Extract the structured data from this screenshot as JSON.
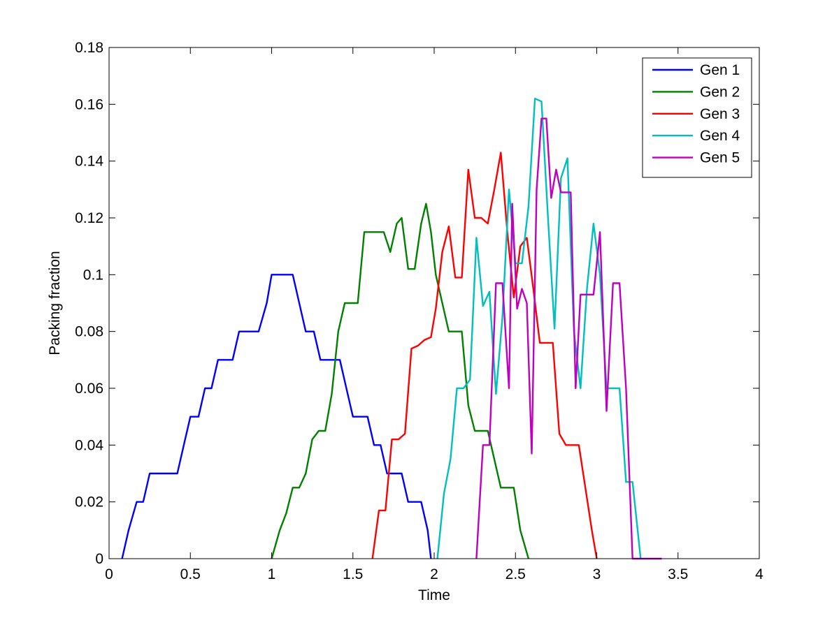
{
  "chart_data": {
    "type": "line",
    "title": "",
    "xlabel": "Time",
    "ylabel": "Packing fraction",
    "xlim": [
      0,
      4
    ],
    "ylim": [
      0,
      0.18
    ],
    "xticks": [
      0,
      0.5,
      1,
      1.5,
      2,
      2.5,
      3,
      3.5,
      4
    ],
    "xtick_labels": [
      "0",
      "0.5",
      "1",
      "1.5",
      "2",
      "2.5",
      "3",
      "3.5",
      "4"
    ],
    "yticks": [
      0,
      0.02,
      0.04,
      0.06,
      0.08,
      0.1,
      0.12,
      0.14,
      0.16,
      0.18
    ],
    "ytick_labels": [
      "0",
      "0.02",
      "0.04",
      "0.06",
      "0.08",
      "0.1",
      "0.12",
      "0.14",
      "0.16",
      "0.18"
    ],
    "grid": false,
    "legend_position": "top-right",
    "series": [
      {
        "name": "Gen 1",
        "color": "#0000ff",
        "x": [
          0.08,
          0.12,
          0.17,
          0.21,
          0.25,
          0.3,
          0.34,
          0.38,
          0.42,
          0.46,
          0.5,
          0.55,
          0.59,
          0.63,
          0.67,
          0.71,
          0.76,
          0.8,
          0.84,
          0.88,
          0.92,
          0.97,
          1.0,
          1.05,
          1.09,
          1.13,
          1.17,
          1.21,
          1.26,
          1.3,
          1.34,
          1.38,
          1.42,
          1.46,
          1.5,
          1.55,
          1.59,
          1.63,
          1.67,
          1.71,
          1.76,
          1.8,
          1.84,
          1.88,
          1.92,
          1.96,
          1.98
        ],
        "y": [
          0,
          0.01,
          0.02,
          0.02,
          0.03,
          0.03,
          0.03,
          0.03,
          0.03,
          0.04,
          0.05,
          0.05,
          0.06,
          0.06,
          0.07,
          0.07,
          0.07,
          0.08,
          0.08,
          0.08,
          0.08,
          0.09,
          0.1,
          0.1,
          0.1,
          0.1,
          0.09,
          0.08,
          0.08,
          0.07,
          0.07,
          0.07,
          0.07,
          0.06,
          0.05,
          0.05,
          0.05,
          0.04,
          0.04,
          0.03,
          0.03,
          0.03,
          0.02,
          0.02,
          0.02,
          0.01,
          0
        ]
      },
      {
        "name": "Gen 2",
        "color": "#008000",
        "x": [
          1.0,
          1.05,
          1.09,
          1.13,
          1.17,
          1.21,
          1.25,
          1.29,
          1.33,
          1.37,
          1.41,
          1.45,
          1.49,
          1.53,
          1.57,
          1.61,
          1.65,
          1.69,
          1.73,
          1.77,
          1.8,
          1.84,
          1.88,
          1.92,
          1.95,
          1.98,
          2.01,
          2.05,
          2.09,
          2.13,
          2.17,
          2.21,
          2.25,
          2.29,
          2.33,
          2.37,
          2.41,
          2.45,
          2.49,
          2.53,
          2.58
        ],
        "y": [
          0,
          0.01,
          0.016,
          0.025,
          0.025,
          0.03,
          0.042,
          0.045,
          0.045,
          0.058,
          0.08,
          0.09,
          0.09,
          0.09,
          0.115,
          0.115,
          0.115,
          0.115,
          0.108,
          0.118,
          0.12,
          0.102,
          0.102,
          0.118,
          0.125,
          0.115,
          0.1,
          0.09,
          0.08,
          0.08,
          0.08,
          0.054,
          0.045,
          0.045,
          0.045,
          0.035,
          0.025,
          0.025,
          0.025,
          0.01,
          0
        ]
      },
      {
        "name": "Gen 3",
        "color": "#ff0000",
        "x": [
          1.62,
          1.66,
          1.7,
          1.74,
          1.78,
          1.82,
          1.86,
          1.9,
          1.94,
          1.98,
          2.01,
          2.05,
          2.09,
          2.13,
          2.17,
          2.21,
          2.25,
          2.29,
          2.33,
          2.37,
          2.41,
          2.45,
          2.49,
          2.53,
          2.57,
          2.61,
          2.65,
          2.69,
          2.73,
          2.77,
          2.81,
          2.85,
          2.89,
          2.93,
          2.97,
          3.0
        ],
        "y": [
          0,
          0.017,
          0.017,
          0.042,
          0.042,
          0.044,
          0.074,
          0.075,
          0.077,
          0.078,
          0.088,
          0.108,
          0.117,
          0.099,
          0.099,
          0.137,
          0.12,
          0.12,
          0.118,
          0.13,
          0.143,
          0.115,
          0.092,
          0.11,
          0.113,
          0.095,
          0.076,
          0.076,
          0.076,
          0.044,
          0.04,
          0.04,
          0.04,
          0.025,
          0.01,
          0
        ]
      },
      {
        "name": "Gen 4",
        "color": "#00bfbf",
        "x": [
          2.02,
          2.06,
          2.1,
          2.14,
          2.18,
          2.22,
          2.26,
          2.3,
          2.34,
          2.38,
          2.42,
          2.46,
          2.5,
          2.54,
          2.58,
          2.62,
          2.66,
          2.7,
          2.74,
          2.78,
          2.82,
          2.86,
          2.9,
          2.94,
          2.98,
          3.02,
          3.06,
          3.1,
          3.14,
          3.18,
          3.22,
          3.27
        ],
        "y": [
          0,
          0.023,
          0.035,
          0.06,
          0.06,
          0.063,
          0.113,
          0.089,
          0.094,
          0.058,
          0.085,
          0.13,
          0.104,
          0.104,
          0.124,
          0.162,
          0.161,
          0.12,
          0.081,
          0.134,
          0.141,
          0.08,
          0.06,
          0.095,
          0.118,
          0.1,
          0.06,
          0.06,
          0.06,
          0.027,
          0.027,
          0
        ]
      },
      {
        "name": "Gen 5",
        "color": "#bf00bf",
        "x": [
          2.26,
          2.3,
          2.34,
          2.38,
          2.42,
          2.46,
          2.48,
          2.51,
          2.54,
          2.57,
          2.6,
          2.63,
          2.66,
          2.69,
          2.72,
          2.75,
          2.78,
          2.81,
          2.84,
          2.87,
          2.9,
          2.94,
          2.98,
          3.02,
          3.06,
          3.1,
          3.14,
          3.18,
          3.22,
          3.26,
          3.3,
          3.34,
          3.4
        ],
        "y": [
          0,
          0.04,
          0.04,
          0.097,
          0.097,
          0.06,
          0.125,
          0.088,
          0.095,
          0.09,
          0.037,
          0.13,
          0.155,
          0.155,
          0.127,
          0.137,
          0.129,
          0.129,
          0.129,
          0.06,
          0.093,
          0.093,
          0.093,
          0.115,
          0.052,
          0.097,
          0.097,
          0.06,
          0,
          0,
          0,
          0,
          0
        ]
      }
    ]
  }
}
